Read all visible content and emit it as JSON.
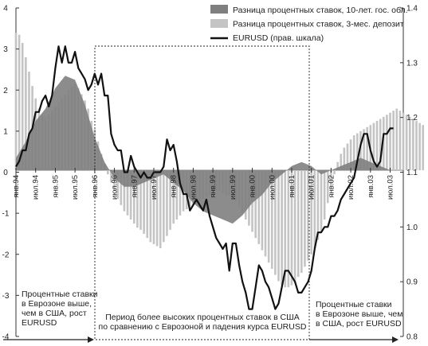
{
  "chart_data": {
    "type": "bar",
    "title": "",
    "xlabel": "",
    "ylabel": "",
    "ylim": [
      -4,
      4
    ],
    "y2lim": [
      0.8,
      1.4
    ],
    "y_ticks": [
      "4",
      "3",
      "2",
      "1",
      "0",
      "-1",
      "-2",
      "-3",
      "-4"
    ],
    "y2_ticks": [
      "1.4",
      "1.3",
      "1.2",
      "1.1",
      "1.0",
      "0.9",
      "0.8"
    ],
    "x_ticks": [
      "янв.94",
      "июл.94",
      "янв.95",
      "июл.95",
      "янв.96",
      "июл.96",
      "янв.97",
      "июл.97",
      "янв.98",
      "июл.98",
      "янв.99",
      "июл.99",
      "янв.00",
      "июл.00",
      "янв.01",
      "июл.01",
      "янв.02",
      "июл.02",
      "янв.03",
      "июл.03"
    ],
    "legend": {
      "position": "top-right",
      "items": [
        {
          "label": "Разница процентных ставок, 10-лет. гос. обл.",
          "color": "#7f7f7f",
          "kind": "area"
        },
        {
          "label": "Разница процентных ставок, 3-мес. депозит",
          "color": "#c4c4c4",
          "kind": "bars"
        },
        {
          "label": "EURUSD (прав. шкала)",
          "color": "#111111",
          "kind": "line"
        }
      ]
    },
    "annotations": {
      "left_lines": [
        "Процентные ставки",
        "в Еврозоне выше,",
        "чем в США, рост",
        "EURUSD"
      ],
      "center_lines": [
        "Период более высоких процентных ставок в США",
        "по сравнению с Еврозоной и падения курса EURUSD"
      ],
      "right_lines": [
        "Процентные ставки",
        "в Еврозоне выше, чем",
        "в США, рост EURUSD"
      ]
    },
    "series": [
      {
        "name": "Разница процентных ставок, 10-лет. гос. обл.",
        "axis": "left",
        "x": [
          0,
          3,
          6,
          9,
          12,
          15,
          18,
          21,
          24,
          27,
          30,
          33,
          36,
          39,
          42,
          45,
          48,
          51,
          54,
          57,
          60,
          63,
          66,
          69,
          72,
          75,
          78,
          81,
          84,
          87,
          90,
          93,
          96,
          99,
          102,
          105,
          108,
          111,
          114
        ],
        "values": [
          0.3,
          0.7,
          1.2,
          1.5,
          2.0,
          2.3,
          2.2,
          1.6,
          0.8,
          0.2,
          -0.2,
          -0.4,
          -0.4,
          -0.3,
          -0.2,
          -0.1,
          -0.3,
          -0.5,
          -0.8,
          -1.0,
          -1.1,
          -1.2,
          -1.3,
          -1.1,
          -0.8,
          -0.6,
          -0.3,
          -0.1,
          0.1,
          0.2,
          0.1,
          -0.1,
          0.0,
          0.1,
          0.2,
          0.3,
          0.2,
          0.1,
          0.0
        ]
      },
      {
        "name": "Разница процентных ставок, 3-мес. депозит",
        "axis": "left",
        "x_start": 0,
        "values": [
          3.35,
          3.3,
          3.1,
          2.75,
          2.4,
          2.05,
          1.75,
          1.5,
          1.35,
          1.3,
          1.35,
          1.45,
          1.55,
          1.65,
          1.75,
          1.85,
          1.95,
          2.05,
          2.1,
          2.0,
          1.85,
          1.7,
          1.5,
          1.2,
          1.0,
          0.7,
          0.4,
          0.15,
          -0.1,
          -0.3,
          -0.5,
          -0.7,
          -0.85,
          -1.0,
          -1.1,
          -1.2,
          -1.3,
          -1.4,
          -1.45,
          -1.55,
          -1.65,
          -1.75,
          -1.8,
          -1.85,
          -1.9,
          -1.75,
          -1.6,
          -1.45,
          -1.3,
          -1.2,
          -1.1,
          -1.0,
          -0.95,
          -0.9,
          -0.85,
          -0.8,
          -0.75,
          -0.7,
          -0.65,
          -0.6,
          -0.55,
          -0.5,
          -0.5,
          -0.55,
          -0.6,
          -0.6,
          -0.6,
          -0.75,
          -0.9,
          -1.05,
          -1.2,
          -1.35,
          -1.5,
          -1.65,
          -1.8,
          -1.95,
          -2.1,
          -2.25,
          -2.4,
          -2.55,
          -2.7,
          -2.8,
          -2.85,
          -2.85,
          -2.8,
          -2.75,
          -2.6,
          -2.5,
          -2.35,
          -2.2,
          -2.05,
          -1.9,
          -1.7,
          -1.5,
          -1.2,
          -0.8,
          -0.4,
          -0.1,
          0.2,
          0.4,
          0.55,
          0.65,
          0.75,
          0.85,
          0.9,
          0.95,
          1.0,
          1.05,
          1.1,
          1.15,
          1.2,
          1.25,
          1.3,
          1.35,
          1.4,
          1.45,
          1.5,
          1.45,
          1.4,
          1.35,
          1.3,
          1.25,
          1.2,
          1.15,
          1.1
        ]
      },
      {
        "name": "EURUSD (прав. шкала)",
        "axis": "right",
        "x": [
          0,
          1,
          2,
          3,
          4,
          5,
          6,
          7,
          8,
          9,
          10,
          11,
          12,
          13,
          14,
          15,
          16,
          17,
          18,
          19,
          20,
          21,
          22,
          23,
          24,
          25,
          26,
          27,
          28,
          29,
          30,
          31,
          32,
          33,
          34,
          35,
          36,
          37,
          38,
          39,
          40,
          41,
          42,
          43,
          44,
          45,
          46,
          47,
          48,
          49,
          50,
          51,
          52,
          53,
          54,
          55,
          56,
          57,
          58,
          59,
          60,
          61,
          62,
          63,
          64,
          65,
          66,
          67,
          68,
          69,
          70,
          71,
          72,
          73,
          74,
          75,
          76,
          77,
          78,
          79,
          80,
          81,
          82,
          83,
          84,
          85,
          86,
          87,
          88,
          89,
          90,
          91,
          92,
          93,
          94,
          95,
          96,
          97,
          98,
          99,
          100,
          101,
          102,
          103,
          104,
          105,
          106,
          107,
          108,
          109,
          110,
          111,
          112,
          113,
          114,
          115
        ],
        "values": [
          1.11,
          1.12,
          1.14,
          1.14,
          1.17,
          1.18,
          1.21,
          1.21,
          1.23,
          1.24,
          1.22,
          1.24,
          1.29,
          1.33,
          1.3,
          1.33,
          1.3,
          1.3,
          1.32,
          1.29,
          1.28,
          1.27,
          1.25,
          1.26,
          1.28,
          1.26,
          1.28,
          1.24,
          1.24,
          1.17,
          1.15,
          1.14,
          1.14,
          1.1,
          1.1,
          1.13,
          1.11,
          1.1,
          1.09,
          1.1,
          1.09,
          1.09,
          1.1,
          1.1,
          1.1,
          1.11,
          1.16,
          1.14,
          1.15,
          1.12,
          1.08,
          1.06,
          1.06,
          1.03,
          1.04,
          1.05,
          1.04,
          1.03,
          1.05,
          1.02,
          1.0,
          0.98,
          0.97,
          0.96,
          0.97,
          0.92,
          0.97,
          0.97,
          0.93,
          0.9,
          0.88,
          0.85,
          0.85,
          0.89,
          0.93,
          0.92,
          0.9,
          0.89,
          0.87,
          0.85,
          0.86,
          0.89,
          0.92,
          0.92,
          0.91,
          0.9,
          0.88,
          0.88,
          0.89,
          0.9,
          0.92,
          0.96,
          0.99,
          0.99,
          1.0,
          1.0,
          1.02,
          1.02,
          1.03,
          1.05,
          1.06,
          1.07,
          1.08,
          1.09,
          1.12,
          1.15,
          1.17,
          1.17,
          1.14,
          1.12,
          1.11,
          1.12,
          1.17,
          1.17,
          1.18,
          1.18
        ]
      }
    ]
  }
}
